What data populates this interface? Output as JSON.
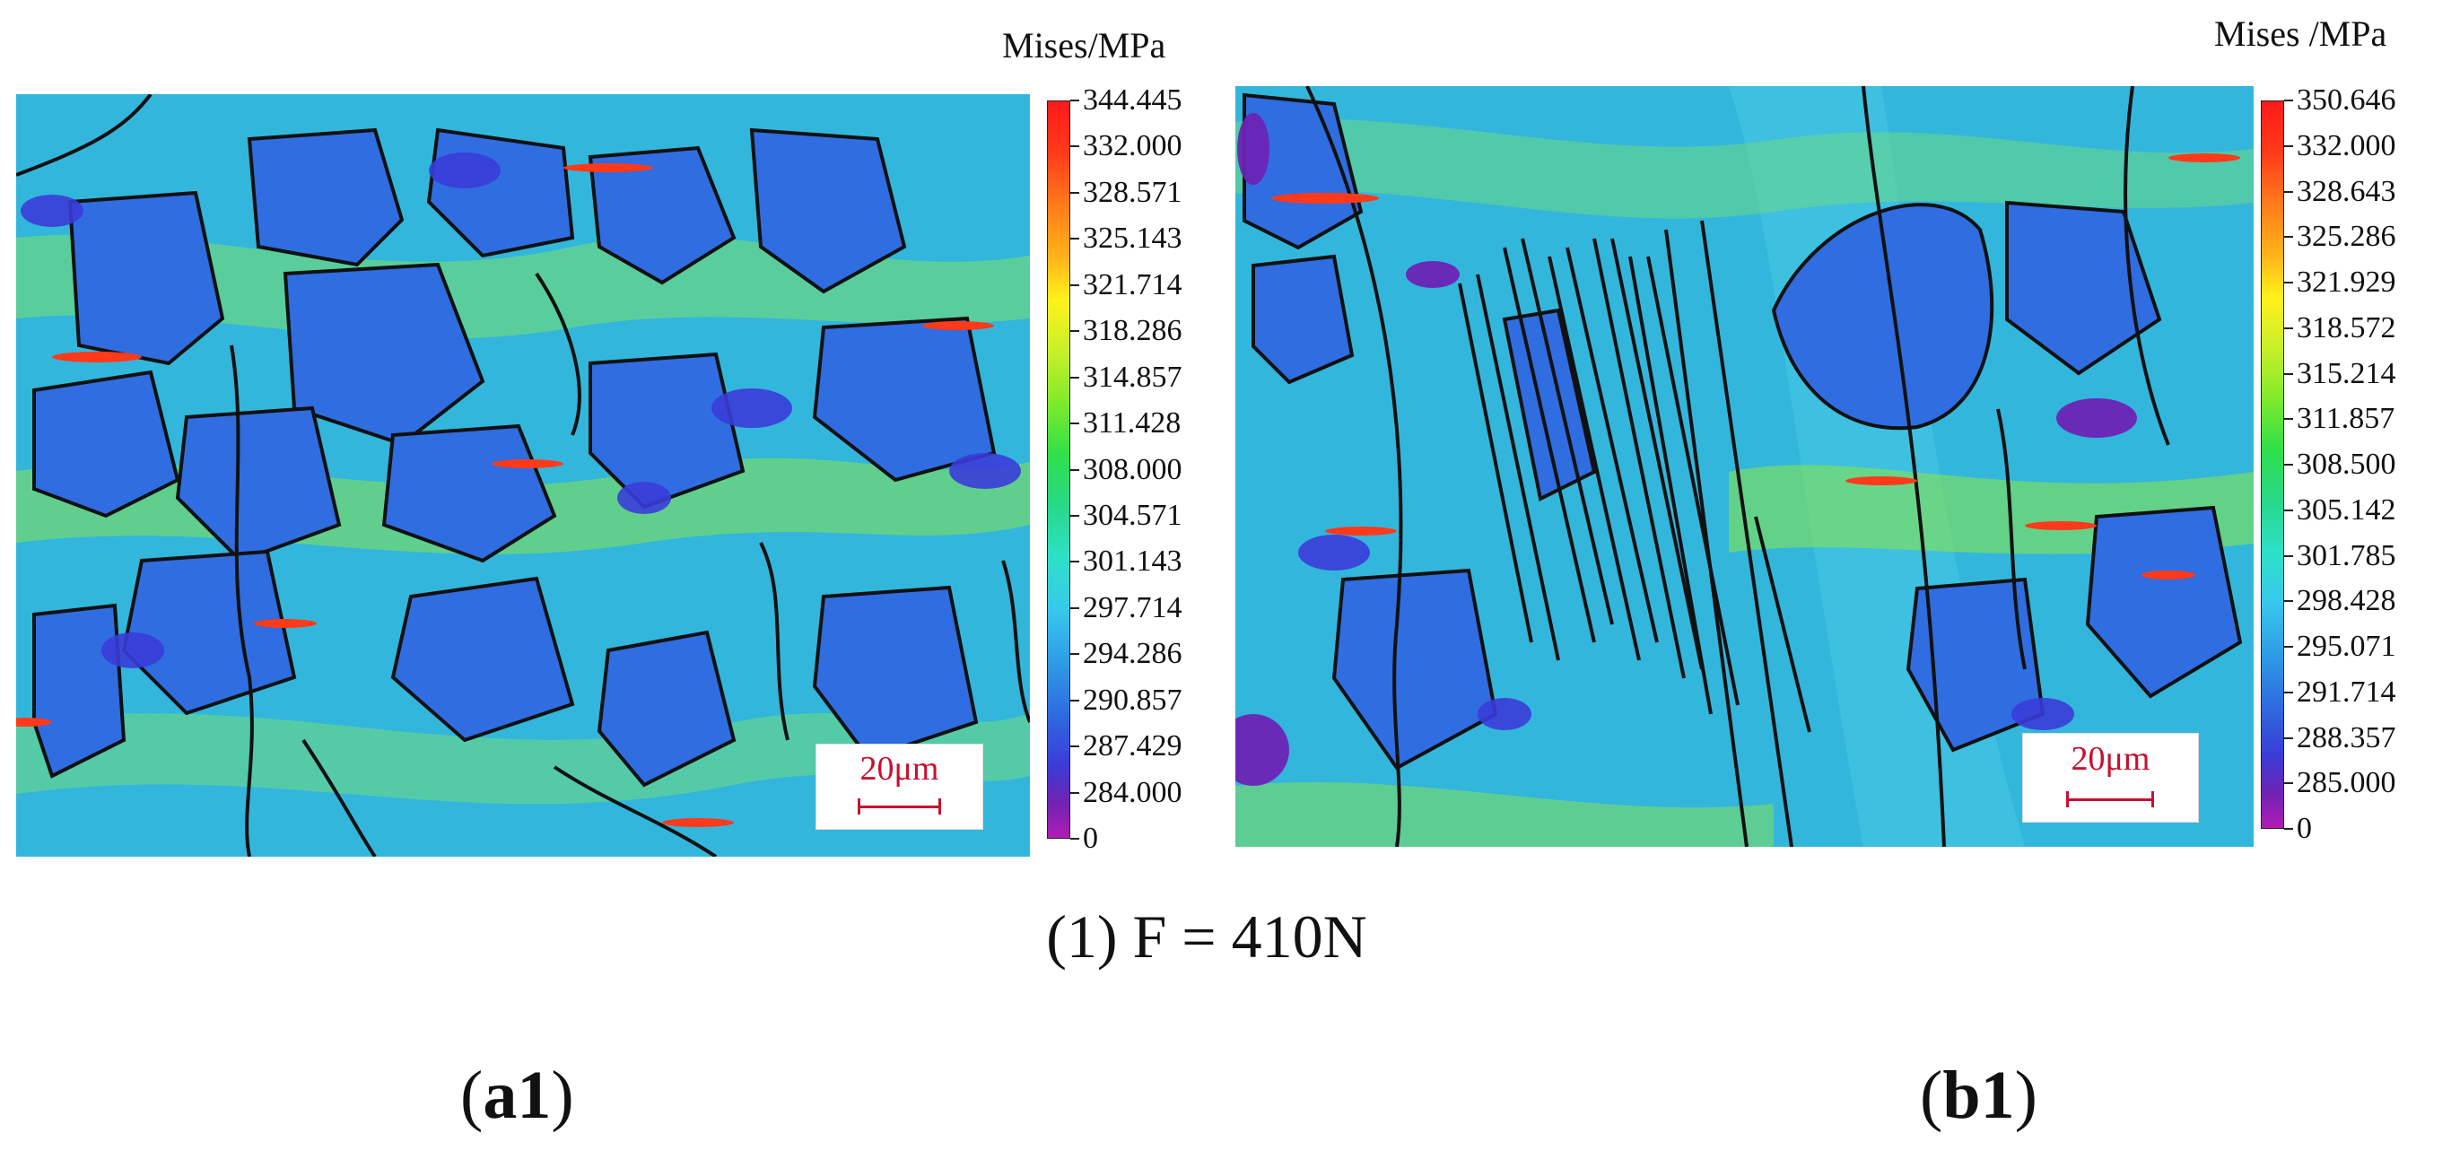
{
  "panels": [
    {
      "legend_title": "Mises/MPa",
      "ticks": [
        "344.445",
        "332.000",
        "328.571",
        "325.143",
        "321.714",
        "318.286",
        "314.857",
        "311.428",
        "308.000",
        "304.571",
        "301.143",
        "297.714",
        "294.286",
        "290.857",
        "287.429",
        "284.000",
        "0"
      ],
      "scale_label": "20μm",
      "label": "a1"
    },
    {
      "legend_title": "Mises /MPa",
      "ticks": [
        "350.646",
        "332.000",
        "328.643",
        "325.286",
        "321.929",
        "318.572",
        "315.214",
        "311.857",
        "308.500",
        "305.142",
        "301.785",
        "298.428",
        "295.071",
        "291.714",
        "288.357",
        "285.000",
        "0"
      ],
      "scale_label": "20μm",
      "label": "b1"
    }
  ],
  "caption": "(1) F = 410N",
  "colors": {
    "field_base": "#33b6dc",
    "grain_blue": "#2f6de0",
    "grain_dark": "#3a4fd8",
    "high_green": "#7fe05a",
    "peak": "#ff3a1a",
    "boundary": "#111111",
    "scale_red": "#c8102e"
  }
}
